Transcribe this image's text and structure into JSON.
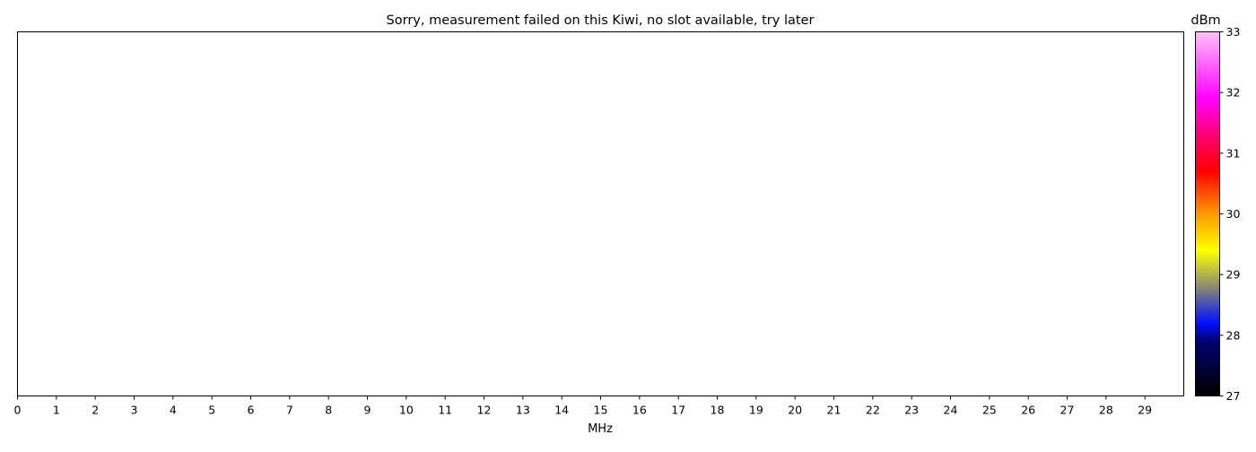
{
  "chart_data": {
    "type": "heatmap",
    "title": "Sorry, measurement failed on this Kiwi, no slot available, try later",
    "xlabel": "MHz",
    "ylabel": "",
    "xlim": [
      0,
      30
    ],
    "x_ticks": [
      "0",
      "1",
      "2",
      "3",
      "4",
      "5",
      "6",
      "7",
      "8",
      "9",
      "10",
      "11",
      "12",
      "13",
      "14",
      "15",
      "16",
      "17",
      "18",
      "19",
      "20",
      "21",
      "22",
      "23",
      "24",
      "25",
      "26",
      "27",
      "28",
      "29"
    ],
    "values": [],
    "grid": false,
    "colorbar": {
      "label": "dBm",
      "range": [
        27,
        33
      ],
      "ticks": [
        "27",
        "28",
        "29",
        "30",
        "31",
        "32",
        "33"
      ],
      "colors": [
        {
          "value": 27.0,
          "color": "#000000"
        },
        {
          "value": 27.9,
          "color": "#000070"
        },
        {
          "value": 28.2,
          "color": "#0010ff"
        },
        {
          "value": 28.8,
          "color": "#8a8a70"
        },
        {
          "value": 29.4,
          "color": "#ffff00"
        },
        {
          "value": 30.0,
          "color": "#ff9900"
        },
        {
          "value": 30.7,
          "color": "#ff0000"
        },
        {
          "value": 31.2,
          "color": "#ff0060"
        },
        {
          "value": 31.9,
          "color": "#ff00ff"
        },
        {
          "value": 33.0,
          "color": "#ffc0f8"
        }
      ]
    }
  }
}
